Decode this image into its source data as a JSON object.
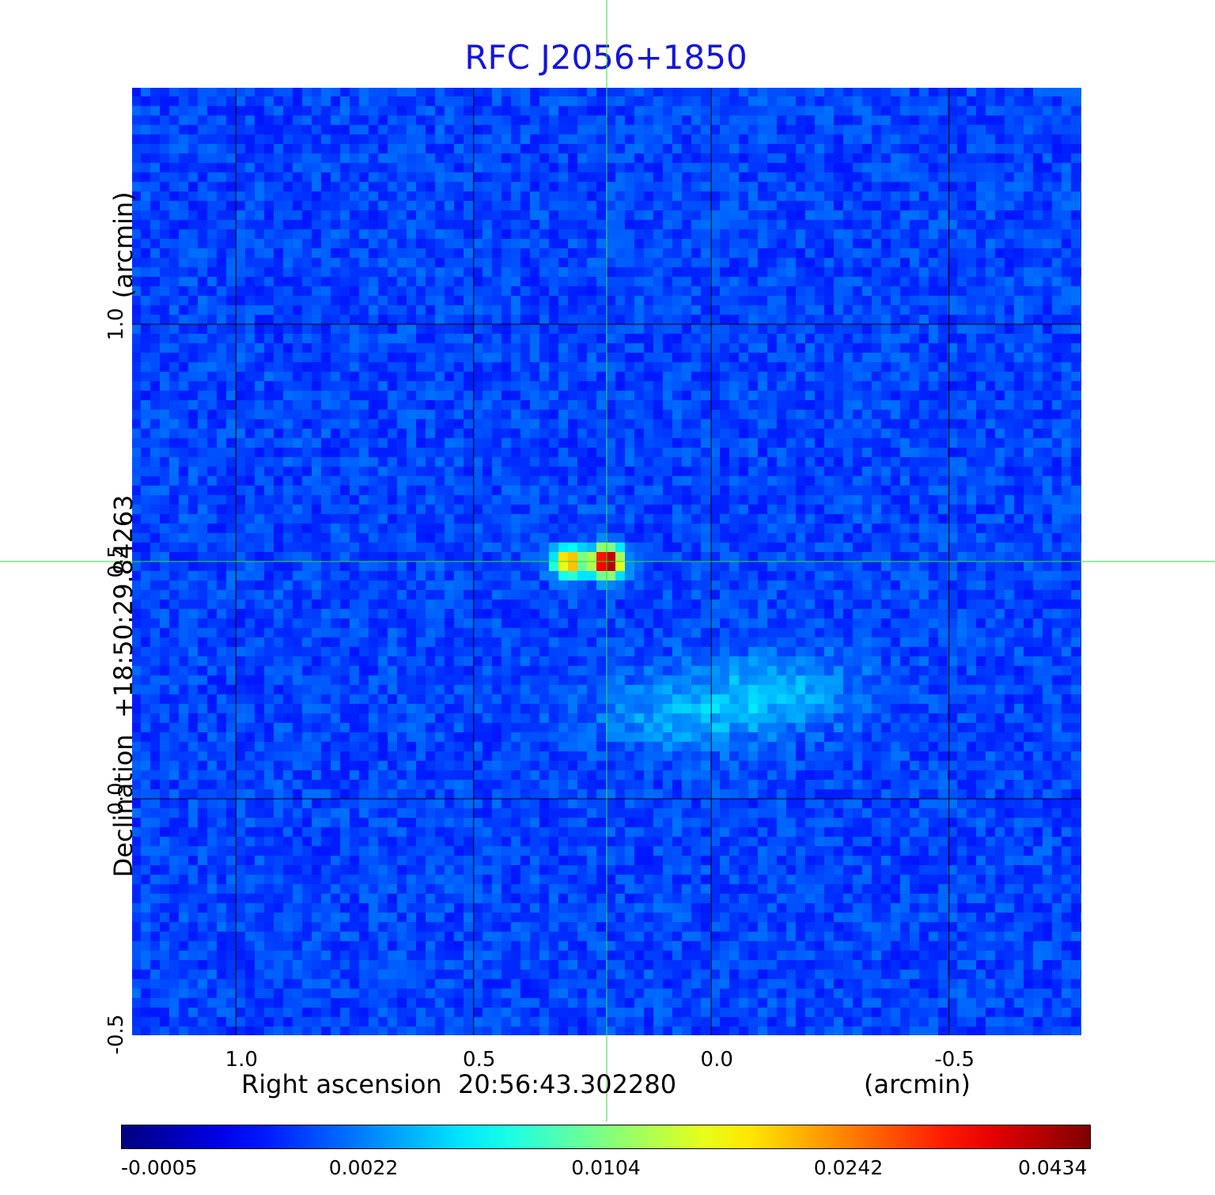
{
  "chart_data": {
    "type": "heatmap",
    "title": "RFC J2056+1850",
    "xlabel": "Right ascension  20:56:43.302280",
    "xunit": "(arcmin)",
    "ylabel": "Declination  +18:50:29.84263",
    "yunit": "(arcmin)",
    "x_ticks": [
      "1.0",
      "0.5",
      "0.0",
      "-0.5"
    ],
    "x_tick_values": [
      1.0,
      0.5,
      0.0,
      -0.5
    ],
    "y_ticks": [
      "1.0",
      "0.5",
      "0.0",
      "-0.5"
    ],
    "y_tick_values": [
      1.0,
      0.5,
      0.0,
      -0.5
    ],
    "xlim": [
      1.22,
      -0.78
    ],
    "ylim": [
      -0.5,
      1.5
    ],
    "grid": true,
    "crosshair": {
      "x": 0.22,
      "y": 0.5
    },
    "sources": [
      {
        "x": 0.22,
        "y": 0.5,
        "peak": 0.0434
      },
      {
        "x": 0.3,
        "y": 0.5,
        "peak": 0.02
      },
      {
        "x": 0.05,
        "y": 0.18,
        "peak": 0.0045
      },
      {
        "x": -0.15,
        "y": 0.23,
        "peak": 0.0042
      }
    ],
    "colorbar": {
      "ticks": [
        "-0.0005",
        "0.0022",
        "0.0104",
        "0.0242",
        "0.0434"
      ],
      "colormap": "jet"
    }
  },
  "colors": {
    "title": "#1414dc",
    "crosshair": "#33dd33",
    "grid": "#000000",
    "background": "#1e3cf0"
  }
}
